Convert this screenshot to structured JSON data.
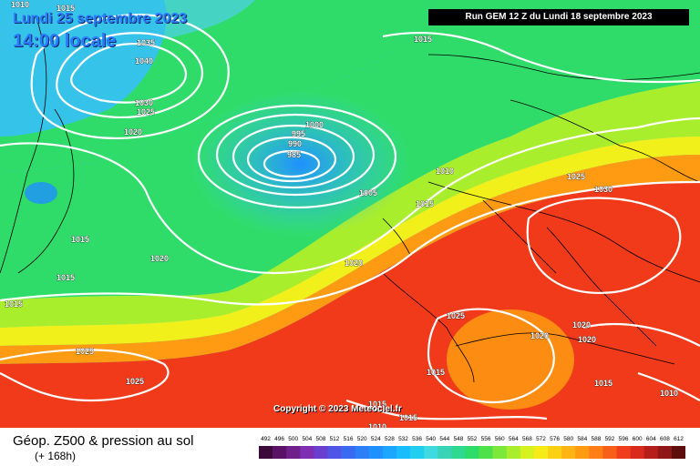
{
  "header": {
    "date": "Lundi 25 septembre 2023",
    "local_time": "14:00 locale",
    "run": "Run GEM 12 Z du Lundi 18 septembre 2023"
  },
  "copyright": "Copyright © 2023 Meteociel.fr",
  "footer": {
    "title": "Géop. Z500 & pression au sol",
    "subtitle": "(+ 168h)"
  },
  "colors": {
    "ocean_deep_blue": "#1e90ff",
    "cyan": "#3fd9f0",
    "green": "#2fdc6a",
    "yellow": "#f2f01a",
    "orange": "#ff9b12",
    "red": "#f03a1a",
    "contour": "#ffffff"
  },
  "scale": {
    "values": [
      "492",
      "496",
      "500",
      "504",
      "508",
      "512",
      "516",
      "520",
      "524",
      "528",
      "532",
      "536",
      "540",
      "544",
      "548",
      "552",
      "556",
      "560",
      "564",
      "568",
      "572",
      "576",
      "580",
      "584",
      "588",
      "592",
      "596",
      "600",
      "604",
      "608",
      "612"
    ],
    "colors": [
      "#3b0a3a",
      "#5a1266",
      "#70208a",
      "#7d2eb2",
      "#6a3fd0",
      "#4f55e6",
      "#3a6af2",
      "#2d7ff7",
      "#1f90ff",
      "#1ba6ff",
      "#19bdfb",
      "#20cfef",
      "#3fd9e0",
      "#39d3b8",
      "#2fd98f",
      "#2edc6a",
      "#4ee24a",
      "#7be83a",
      "#a9ee2c",
      "#d6f220",
      "#f6ea17",
      "#fbd015",
      "#ffb414",
      "#ff9b12",
      "#ff7e16",
      "#f8601a",
      "#f03e1d",
      "#d92a1c",
      "#b51e1a",
      "#8f1718",
      "#5e0d0d"
    ]
  },
  "pressure_labels": [
    "1010",
    "1015",
    "1035",
    "1040",
    "1030",
    "1025",
    "1020",
    "1000",
    "995",
    "990",
    "985",
    "1015",
    "1010",
    "1025",
    "1030",
    "1005",
    "1015",
    "1015",
    "1020",
    "1020",
    "1015",
    "1015",
    "1025",
    "1020",
    "1020",
    "1025",
    "1020",
    "1015",
    "1015",
    "1015",
    "1010",
    "1015",
    "1010",
    "1025"
  ]
}
